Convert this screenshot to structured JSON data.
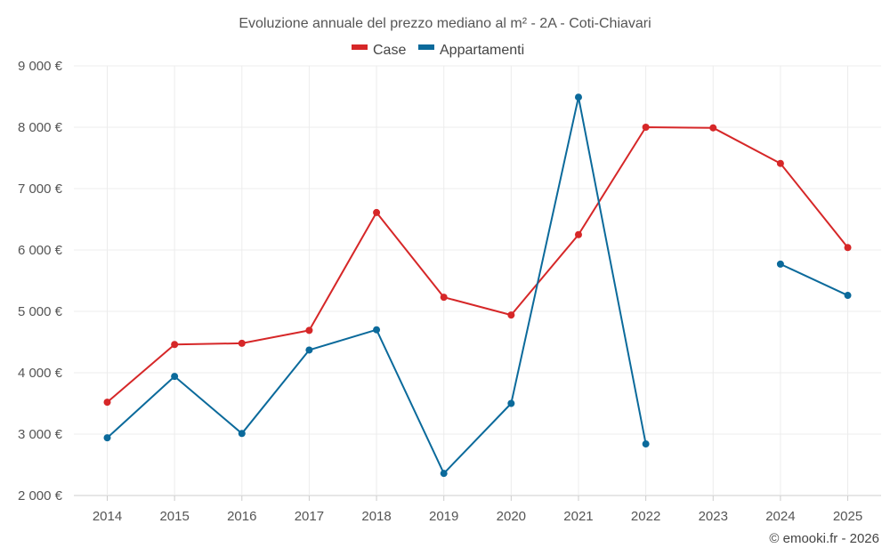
{
  "chart_data": {
    "type": "line",
    "title": "Evoluzione annuale del prezzo mediano al m² - 2A - Coti-Chiavari",
    "categories": [
      "2014",
      "2015",
      "2016",
      "2017",
      "2018",
      "2019",
      "2020",
      "2021",
      "2022",
      "2023",
      "2024",
      "2025"
    ],
    "ylim": [
      2000,
      9000
    ],
    "yticks": [
      2000,
      3000,
      4000,
      5000,
      6000,
      7000,
      8000,
      9000
    ],
    "ytick_labels": [
      "2 000 €",
      "3 000 €",
      "4 000 €",
      "5 000 €",
      "6 000 €",
      "7 000 €",
      "8 000 €",
      "9 000 €"
    ],
    "grid": true,
    "legend_position": "top-center",
    "series": [
      {
        "name": "Case",
        "color": "#d62728",
        "values": [
          3520,
          4460,
          4480,
          4690,
          6610,
          5230,
          4940,
          6250,
          8000,
          7990,
          7410,
          6040
        ]
      },
      {
        "name": "Appartamenti",
        "color": "#0b6a9b",
        "values": [
          2940,
          3940,
          3010,
          4370,
          4700,
          2360,
          3500,
          8490,
          2840,
          null,
          5770,
          5260
        ]
      }
    ],
    "credit": "© emooki.fr - 2026"
  }
}
